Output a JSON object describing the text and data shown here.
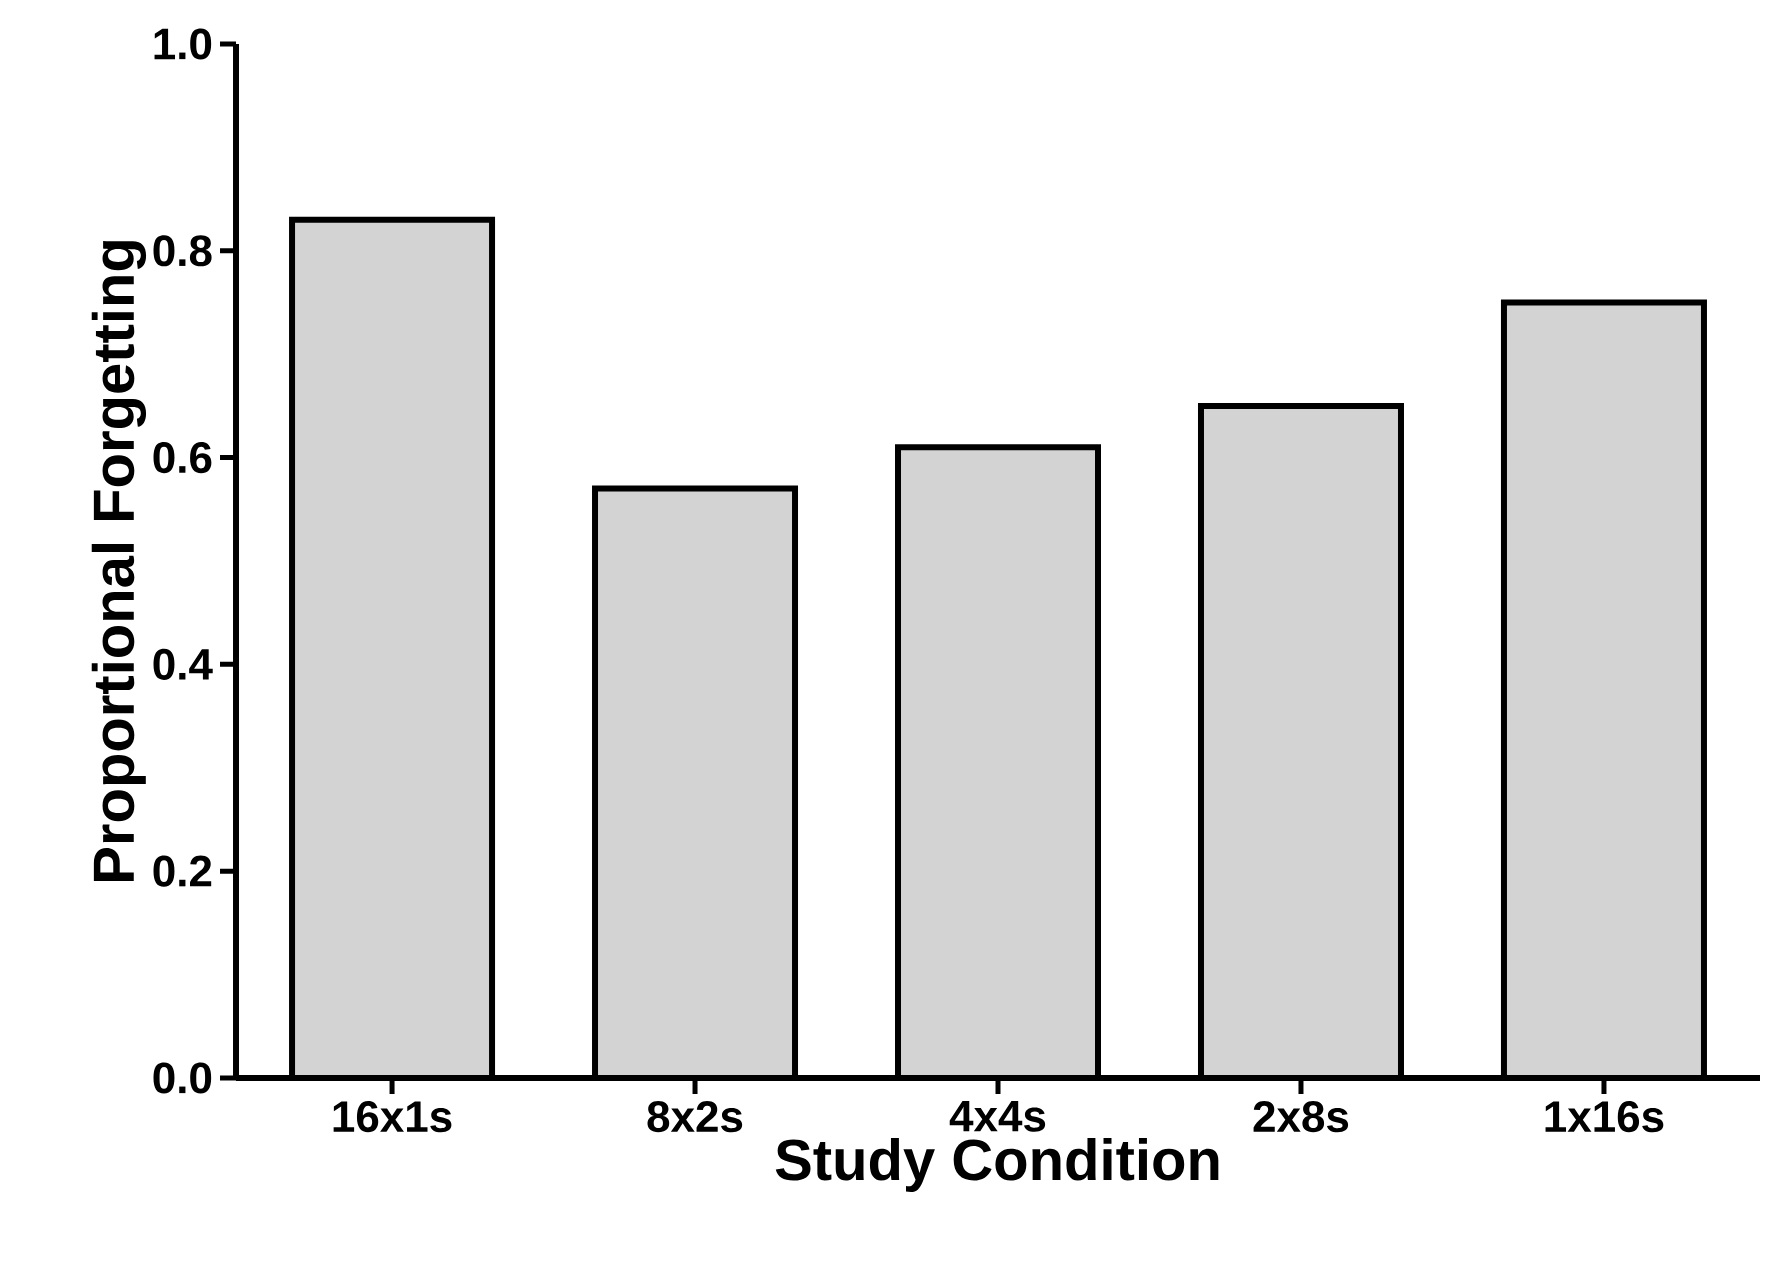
{
  "chart_data": {
    "type": "bar",
    "xlabel": "Study Condition",
    "ylabel": "Proportional Forgetting",
    "categories": [
      "16x1s",
      "8x2s",
      "4x4s",
      "2x8s",
      "1x16s"
    ],
    "values": [
      0.83,
      0.57,
      0.61,
      0.65,
      0.75
    ],
    "color": "#d3d3d3",
    "ylim": [
      0,
      1.0
    ],
    "yticks": [
      {
        "value": 0,
        "label": "0.0"
      },
      {
        "value": 0.2,
        "label": "0.2"
      },
      {
        "value": 0.4,
        "label": "0.4"
      },
      {
        "value": 0.6,
        "label": "0.6"
      },
      {
        "value": 0.8,
        "label": "0.8"
      },
      {
        "value": 1.0,
        "label": "1.0"
      }
    ],
    "grid": false
  }
}
